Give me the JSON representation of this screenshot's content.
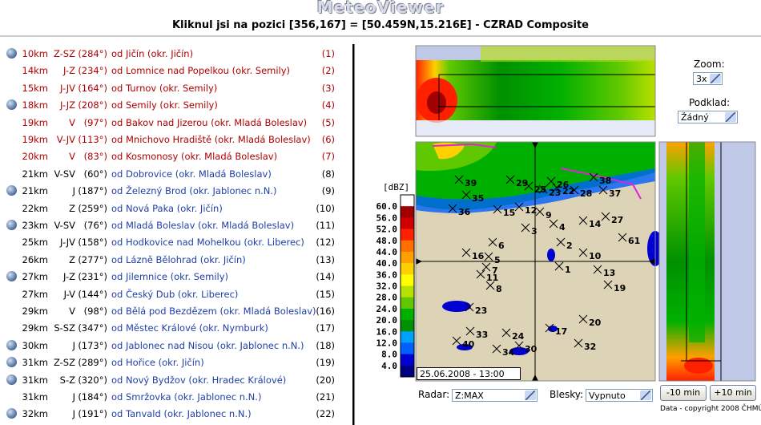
{
  "header": {
    "title": "MeteoViewer",
    "subtitle": "Kliknul jsi na pozici [356,167] = [50.459N,15.216E] - CZRAD Composite"
  },
  "locations": [
    {
      "distance": "10km",
      "direction": "Z-SZ",
      "azimuth": "(284°)",
      "place": "od Jičín (okr. Jičín)",
      "index": "(1)",
      "icon": true,
      "highlight": true
    },
    {
      "distance": "14km",
      "direction": "J-Z",
      "azimuth": "(234°)",
      "place": "od Lomnice nad Popelkou (okr. Semily)",
      "index": "(2)",
      "icon": false,
      "highlight": true
    },
    {
      "distance": "15km",
      "direction": "J-JV",
      "azimuth": "(164°)",
      "place": "od Turnov (okr. Semily)",
      "index": "(3)",
      "icon": false,
      "highlight": true
    },
    {
      "distance": "18km",
      "direction": "J-JZ",
      "azimuth": "(208°)",
      "place": "od Semily (okr. Semily)",
      "index": "(4)",
      "icon": true,
      "highlight": true
    },
    {
      "distance": "19km",
      "direction": "V",
      "azimuth": "(97°)",
      "place": "od Bakov nad Jizerou (okr. Mladá Boleslav)",
      "index": "(5)",
      "icon": false,
      "highlight": true
    },
    {
      "distance": "19km",
      "direction": "V-JV",
      "azimuth": "(113°)",
      "place": "od Mnichovo Hradiště (okr. Mladá Boleslav)",
      "index": "(6)",
      "icon": false,
      "highlight": true
    },
    {
      "distance": "20km",
      "direction": "V",
      "azimuth": "(83°)",
      "place": "od Kosmonosy (okr. Mladá Boleslav)",
      "index": "(7)",
      "icon": false,
      "highlight": true
    },
    {
      "distance": "21km",
      "direction": "V-SV",
      "azimuth": "(60°)",
      "place": "od Dobrovice (okr. Mladá Boleslav)",
      "index": "(8)",
      "icon": false,
      "highlight": false
    },
    {
      "distance": "21km",
      "direction": "J",
      "azimuth": "(187°)",
      "place": "od Železný Brod (okr. Jablonec n.N.)",
      "index": "(9)",
      "icon": true,
      "highlight": false
    },
    {
      "distance": "22km",
      "direction": "Z",
      "azimuth": "(259°)",
      "place": "od Nová Paka (okr. Jičín)",
      "index": "(10)",
      "icon": false,
      "highlight": false
    },
    {
      "distance": "23km",
      "direction": "V-SV",
      "azimuth": "(76°)",
      "place": "od Mladá Boleslav (okr. Mladá Boleslav)",
      "index": "(11)",
      "icon": true,
      "highlight": false
    },
    {
      "distance": "25km",
      "direction": "J-JV",
      "azimuth": "(158°)",
      "place": "od Hodkovice nad Mohelkou (okr. Liberec)",
      "index": "(12)",
      "icon": false,
      "highlight": false
    },
    {
      "distance": "26km",
      "direction": "Z",
      "azimuth": "(277°)",
      "place": "od Lázně Bělohrad (okr. Jičín)",
      "index": "(13)",
      "icon": false,
      "highlight": false
    },
    {
      "distance": "27km",
      "direction": "J-Z",
      "azimuth": "(231°)",
      "place": "od Jilemnice (okr. Semily)",
      "index": "(14)",
      "icon": true,
      "highlight": false
    },
    {
      "distance": "27km",
      "direction": "J-V",
      "azimuth": "(144°)",
      "place": "od Český Dub (okr. Liberec)",
      "index": "(15)",
      "icon": false,
      "highlight": false
    },
    {
      "distance": "29km",
      "direction": "V",
      "azimuth": "(98°)",
      "place": "od Bělá pod Bezdězem (okr. Mladá Boleslav)",
      "index": "(16)",
      "icon": false,
      "highlight": false
    },
    {
      "distance": "29km",
      "direction": "S-SZ",
      "azimuth": "(347°)",
      "place": "od Městec Králové (okr. Nymburk)",
      "index": "(17)",
      "icon": false,
      "highlight": false
    },
    {
      "distance": "30km",
      "direction": "J",
      "azimuth": "(173°)",
      "place": "od Jablonec nad Nisou (okr. Jablonec n.N.)",
      "index": "(18)",
      "icon": true,
      "highlight": false
    },
    {
      "distance": "31km",
      "direction": "Z-SZ",
      "azimuth": "(289°)",
      "place": "od Hořice (okr. Jičín)",
      "index": "(19)",
      "icon": true,
      "highlight": false
    },
    {
      "distance": "31km",
      "direction": "S-Z",
      "azimuth": "(320°)",
      "place": "od Nový Bydžov (okr. Hradec Králové)",
      "index": "(20)",
      "icon": true,
      "highlight": false
    },
    {
      "distance": "31km",
      "direction": "J",
      "azimuth": "(184°)",
      "place": "od Smržovka (okr. Jablonec n.N.)",
      "index": "(21)",
      "icon": false,
      "highlight": false
    },
    {
      "distance": "32km",
      "direction": "J",
      "azimuth": "(191°)",
      "place": "od Tanvald (okr. Jablonec n.N.)",
      "index": "(22)",
      "icon": true,
      "highlight": false
    }
  ],
  "legend": {
    "unit": "[dBZ]",
    "labels": [
      "60.0",
      "56.0",
      "52.0",
      "48.0",
      "44.0",
      "40.0",
      "36.0",
      "32.0",
      "28.0",
      "24.0",
      "20.0",
      "16.0",
      "12.0",
      "8.0",
      "4.0"
    ],
    "colors": [
      "#ffffff",
      "#a00000",
      "#d00000",
      "#ff2000",
      "#ff7000",
      "#ffa000",
      "#ffd000",
      "#ffff00",
      "#b8e000",
      "#60c800",
      "#00b000",
      "#009000",
      "#00a0ff",
      "#0060ff",
      "#0000d0",
      "#000080"
    ]
  },
  "map": {
    "timestamp": "25.06.2008 - 13:00",
    "markers": [
      "39",
      "29",
      "25",
      "26",
      "38",
      "35",
      "23",
      "22",
      "28",
      "37",
      "36",
      "15",
      "12",
      "9",
      "27",
      "14",
      "4",
      "3",
      "61",
      "2",
      "6",
      "16",
      "5",
      "10",
      "7",
      "1",
      "13",
      "11",
      "8",
      "19",
      "23",
      "20",
      "33",
      "24",
      "17",
      "40",
      "34",
      "30",
      "32"
    ]
  },
  "controls": {
    "zoom_label": "Zoom:",
    "zoom": "3x",
    "background_label": "Podklad:",
    "background": "Žádný",
    "radar_label": "Radar:",
    "radar": "Z:MAX",
    "lightning_label": "Blesky:",
    "lightning": "Vypnuto",
    "back_button": "-10 min",
    "forward_button": "+10 min"
  },
  "footer": "Data - copyright 2008 ČHMÚ"
}
